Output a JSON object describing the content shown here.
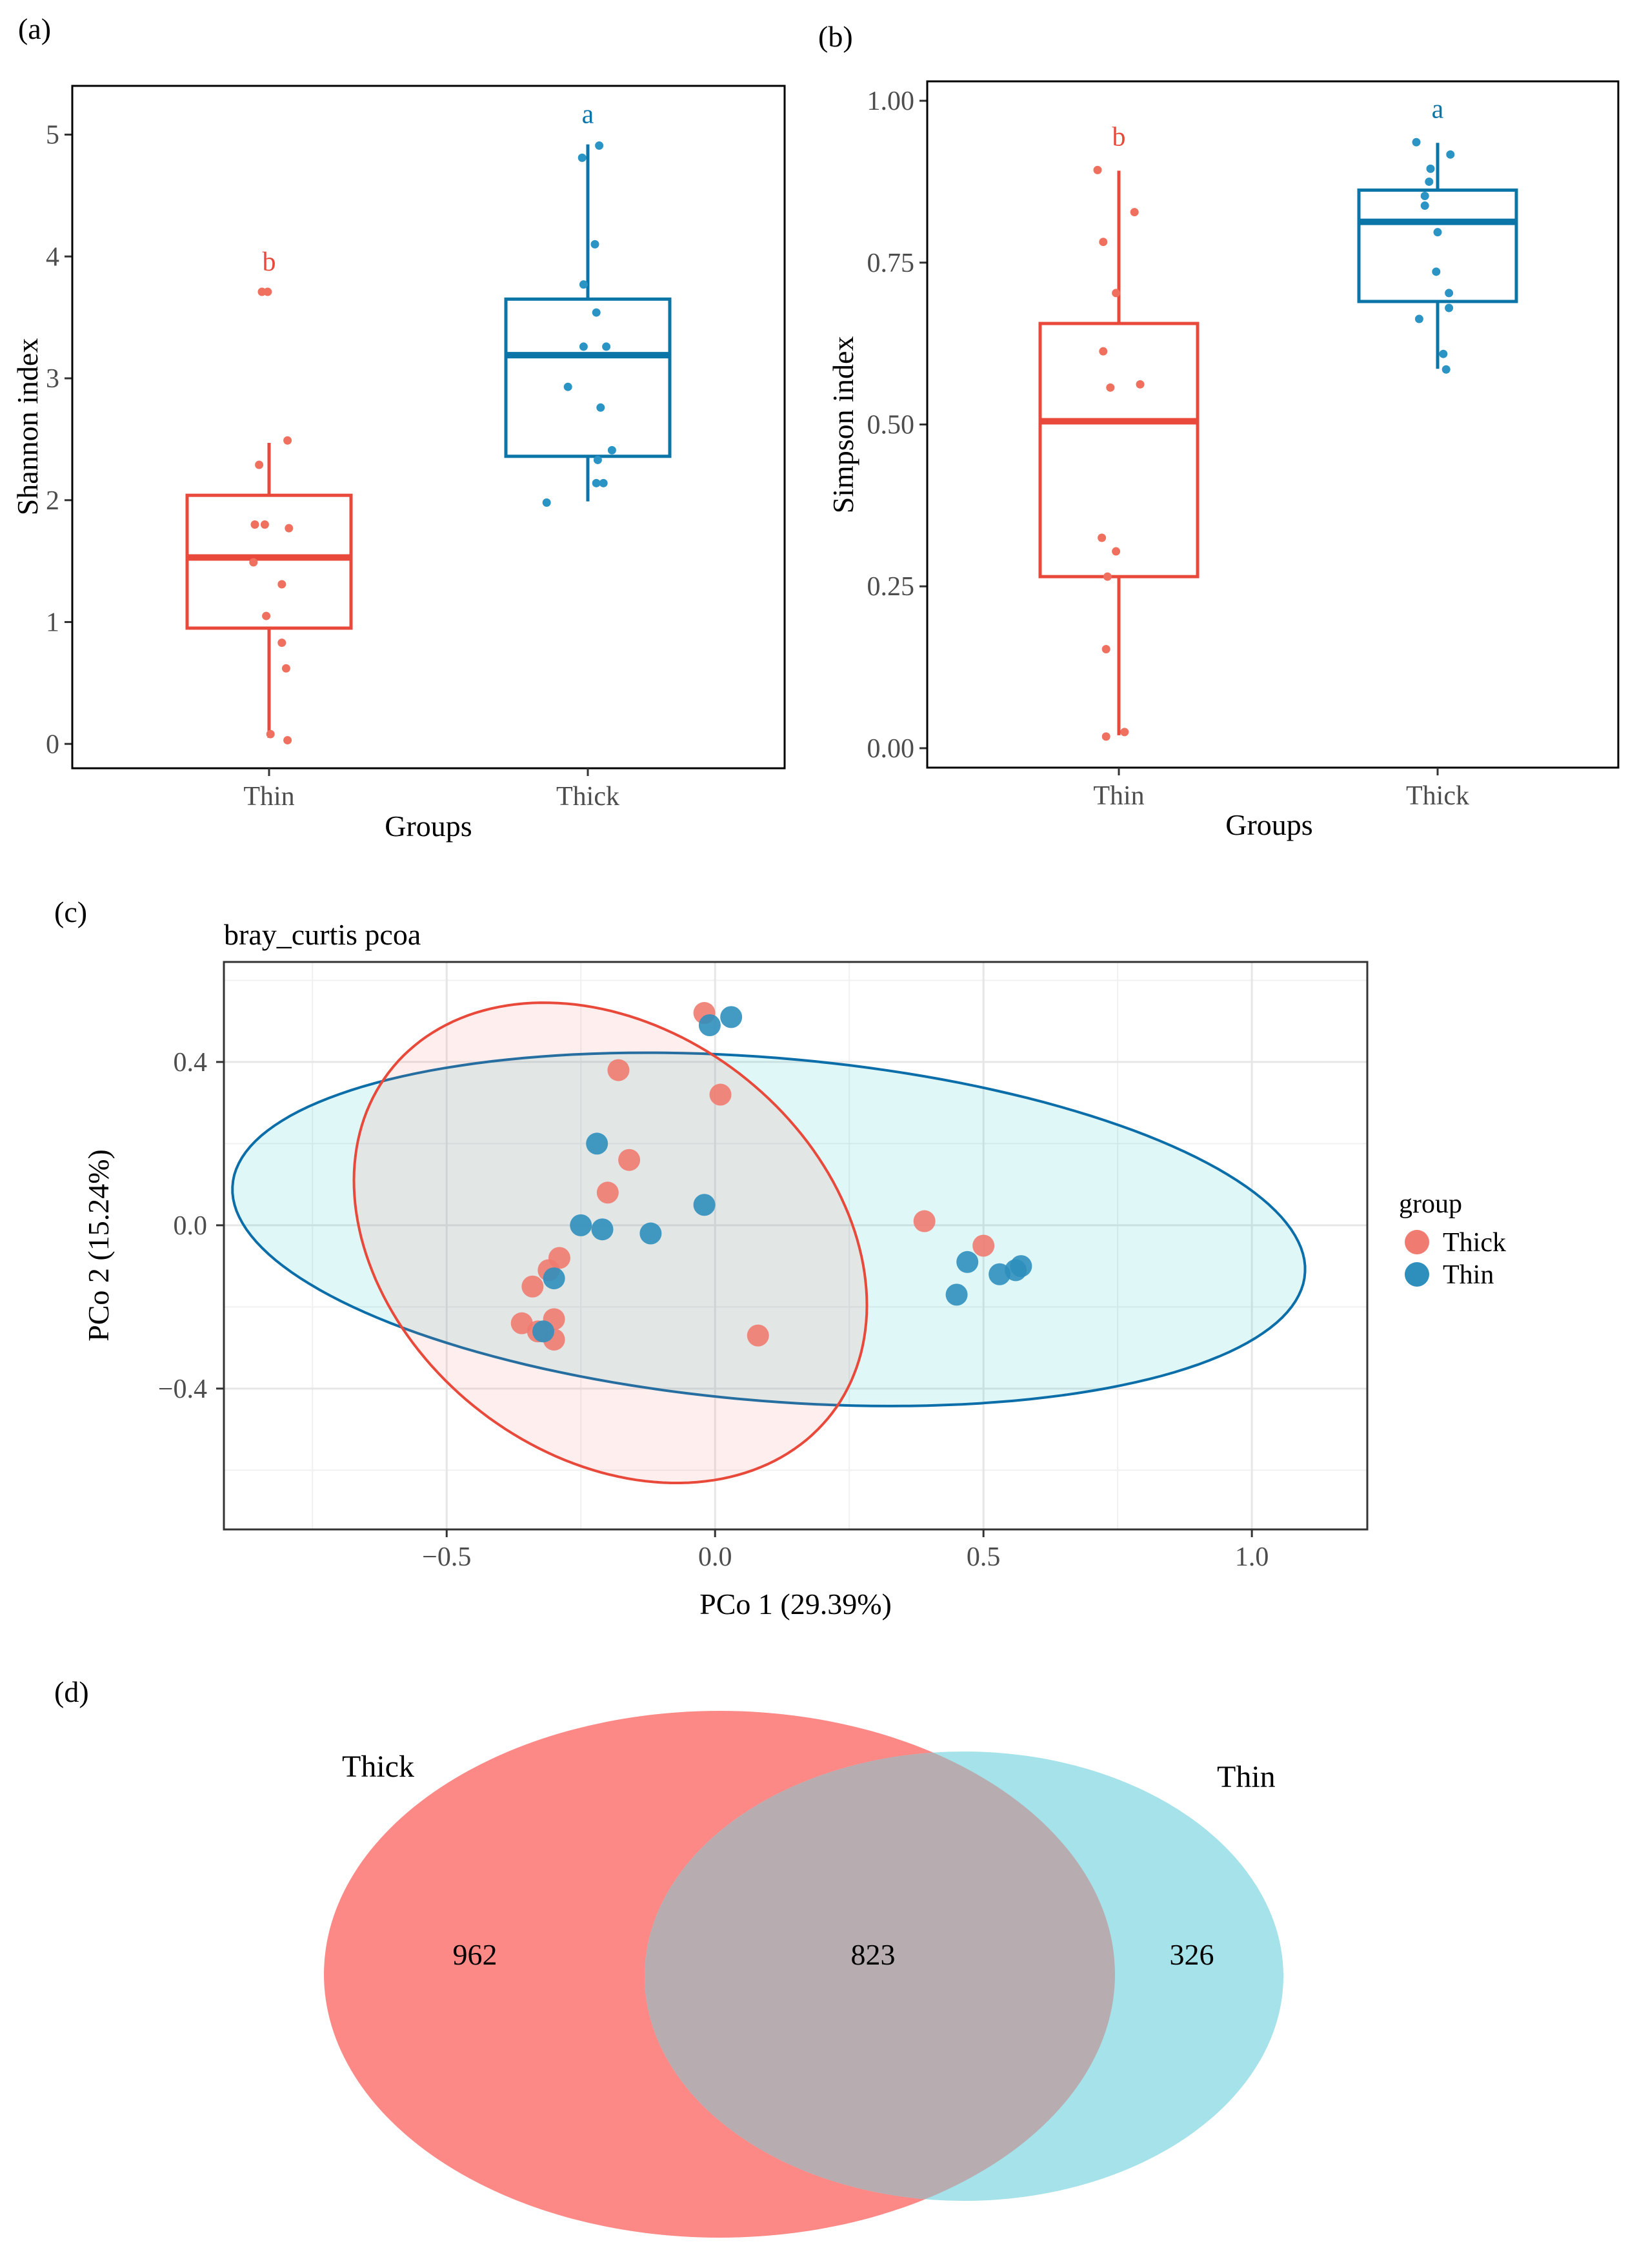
{
  "colors": {
    "thin_box": "#e8493a",
    "thick_box": "#0b75a8",
    "thin_pt": "#f0705f",
    "thick_pt": "#2a94c4",
    "pcoa_thick": "#f07b70",
    "pcoa_thin": "#2f8fbc",
    "pcoa_thick_ellipse": "#e8493a",
    "pcoa_thin_ellipse": "#0b6ea8",
    "venn_thick": "#fd8987",
    "venn_thin": "#a6e2ea",
    "venn_overlap": "#b7adb1",
    "grid": "#e6e6e6"
  },
  "chart_data": [
    {
      "type": "box",
      "panel": "(a)",
      "xlabel": "Groups",
      "ylabel": "Shannon index",
      "ylim": [
        -0.2,
        5.4
      ],
      "yticks": [
        0,
        1,
        2,
        3,
        4,
        5
      ],
      "groups": [
        {
          "name": "Thin",
          "letter": "b",
          "box": {
            "q1": 0.95,
            "median": 1.53,
            "q3": 2.04,
            "whisker_low": 0.05,
            "whisker_high": 2.47
          },
          "points": [
            {
              "dx": -0.05,
              "y": 3.71
            },
            {
              "dx": -0.01,
              "y": 3.71
            },
            {
              "dx": 0.13,
              "y": 2.49
            },
            {
              "dx": -0.07,
              "y": 2.29
            },
            {
              "dx": -0.1,
              "y": 1.8
            },
            {
              "dx": -0.03,
              "y": 1.8
            },
            {
              "dx": 0.14,
              "y": 1.77
            },
            {
              "dx": -0.11,
              "y": 1.49
            },
            {
              "dx": 0.09,
              "y": 1.31
            },
            {
              "dx": -0.02,
              "y": 1.05
            },
            {
              "dx": 0.09,
              "y": 0.83
            },
            {
              "dx": 0.12,
              "y": 0.62
            },
            {
              "dx": 0.01,
              "y": 0.08
            },
            {
              "dx": 0.13,
              "y": 0.03
            }
          ]
        },
        {
          "name": "Thick",
          "letter": "a",
          "box": {
            "q1": 2.36,
            "median": 3.19,
            "q3": 3.65,
            "whisker_low": 1.99,
            "whisker_high": 4.92
          },
          "points": [
            {
              "dx": 0.08,
              "y": 4.91
            },
            {
              "dx": -0.04,
              "y": 4.81
            },
            {
              "dx": 0.05,
              "y": 4.1
            },
            {
              "dx": -0.03,
              "y": 3.77
            },
            {
              "dx": 0.06,
              "y": 3.54
            },
            {
              "dx": -0.03,
              "y": 3.26
            },
            {
              "dx": 0.13,
              "y": 3.26
            },
            {
              "dx": -0.14,
              "y": 2.93
            },
            {
              "dx": 0.09,
              "y": 2.76
            },
            {
              "dx": 0.17,
              "y": 2.41
            },
            {
              "dx": 0.07,
              "y": 2.33
            },
            {
              "dx": 0.06,
              "y": 2.14
            },
            {
              "dx": 0.11,
              "y": 2.14
            },
            {
              "dx": -0.29,
              "y": 1.98
            }
          ]
        }
      ]
    },
    {
      "type": "box",
      "panel": "(b)",
      "xlabel": "Groups",
      "ylabel": "Simpson index",
      "ylim": [
        -0.03,
        1.03
      ],
      "yticks": [
        "0.00",
        "0.25",
        "0.50",
        "0.75",
        "1.00"
      ],
      "groups": [
        {
          "name": "Thin",
          "letter": "b",
          "box": {
            "q1": 0.265,
            "median": 0.505,
            "q3": 0.656,
            "whisker_low": 0.02,
            "whisker_high": 0.892
          },
          "points": [
            {
              "dx": -0.15,
              "y": 0.893
            },
            {
              "dx": 0.11,
              "y": 0.828
            },
            {
              "dx": -0.11,
              "y": 0.782
            },
            {
              "dx": -0.02,
              "y": 0.703
            },
            {
              "dx": -0.11,
              "y": 0.613
            },
            {
              "dx": 0.15,
              "y": 0.562
            },
            {
              "dx": -0.06,
              "y": 0.557
            },
            {
              "dx": -0.12,
              "y": 0.325
            },
            {
              "dx": -0.02,
              "y": 0.304
            },
            {
              "dx": -0.08,
              "y": 0.265
            },
            {
              "dx": -0.09,
              "y": 0.153
            },
            {
              "dx": 0.04,
              "y": 0.025
            },
            {
              "dx": -0.09,
              "y": 0.018
            }
          ]
        },
        {
          "name": "Thick",
          "letter": "a",
          "box": {
            "q1": 0.69,
            "median": 0.813,
            "q3": 0.862,
            "whisker_low": 0.586,
            "whisker_high": 0.935
          },
          "points": [
            {
              "dx": -0.15,
              "y": 0.936
            },
            {
              "dx": 0.09,
              "y": 0.917
            },
            {
              "dx": -0.05,
              "y": 0.895
            },
            {
              "dx": -0.06,
              "y": 0.875
            },
            {
              "dx": -0.09,
              "y": 0.853
            },
            {
              "dx": -0.09,
              "y": 0.838
            },
            {
              "dx": 0.0,
              "y": 0.797
            },
            {
              "dx": -0.01,
              "y": 0.736
            },
            {
              "dx": 0.08,
              "y": 0.703
            },
            {
              "dx": 0.08,
              "y": 0.68
            },
            {
              "dx": -0.13,
              "y": 0.663
            },
            {
              "dx": 0.04,
              "y": 0.609
            },
            {
              "dx": 0.06,
              "y": 0.585
            }
          ]
        }
      ]
    },
    {
      "type": "scatter",
      "panel": "(c)",
      "title": "bray_curtis pcoa",
      "xlabel": "PCo 1 (29.39%)",
      "ylabel": "PCo 2 (15.24%)",
      "xlim": [
        -0.915,
        1.215
      ],
      "ylim": [
        -0.745,
        0.645
      ],
      "xticks": [
        -0.5,
        0.0,
        0.5,
        1.0
      ],
      "xtick_labels": [
        "−0.5",
        "0.0",
        "0.5",
        "1.0"
      ],
      "yticks": [
        -0.4,
        0.0,
        0.4
      ],
      "ytick_labels": [
        "−0.4",
        "0.0",
        "0.4"
      ],
      "legend_title": "group",
      "grid": true,
      "ellipses": [
        {
          "group": "Thick",
          "cx": -0.195,
          "cy": -0.043,
          "rx": 0.44,
          "ry": 0.617,
          "angle_deg": 25.5
        },
        {
          "group": "Thin",
          "cx": 0.1,
          "cy": -0.01,
          "rx": 1.005,
          "ry": 0.419,
          "angle_deg": -6.8
        }
      ],
      "series": [
        {
          "name": "Thick",
          "points": [
            [
              -0.02,
              0.52
            ],
            [
              -0.18,
              0.38
            ],
            [
              0.01,
              0.32
            ],
            [
              -0.16,
              0.16
            ],
            [
              -0.2,
              0.08
            ],
            [
              0.39,
              0.01
            ],
            [
              0.5,
              -0.05
            ],
            [
              -0.29,
              -0.08
            ],
            [
              -0.31,
              -0.11
            ],
            [
              -0.34,
              -0.15
            ],
            [
              -0.3,
              -0.23
            ],
            [
              -0.36,
              -0.24
            ],
            [
              -0.33,
              -0.26
            ],
            [
              -0.3,
              -0.28
            ],
            [
              0.08,
              -0.27
            ]
          ]
        },
        {
          "name": "Thin",
          "points": [
            [
              0.03,
              0.51
            ],
            [
              -0.01,
              0.49
            ],
            [
              -0.22,
              0.2
            ],
            [
              -0.02,
              0.05
            ],
            [
              -0.25,
              0.0
            ],
            [
              -0.21,
              -0.01
            ],
            [
              -0.12,
              -0.02
            ],
            [
              -0.3,
              -0.13
            ],
            [
              -0.32,
              -0.26
            ],
            [
              0.47,
              -0.09
            ],
            [
              0.53,
              -0.12
            ],
            [
              0.56,
              -0.11
            ],
            [
              0.57,
              -0.1
            ],
            [
              0.45,
              -0.17
            ]
          ]
        }
      ]
    },
    {
      "type": "venn",
      "panel": "(d)",
      "sets": [
        {
          "name": "Thick",
          "only": 962
        },
        {
          "name": "Thin",
          "only": 326
        }
      ],
      "intersection": 823
    }
  ]
}
